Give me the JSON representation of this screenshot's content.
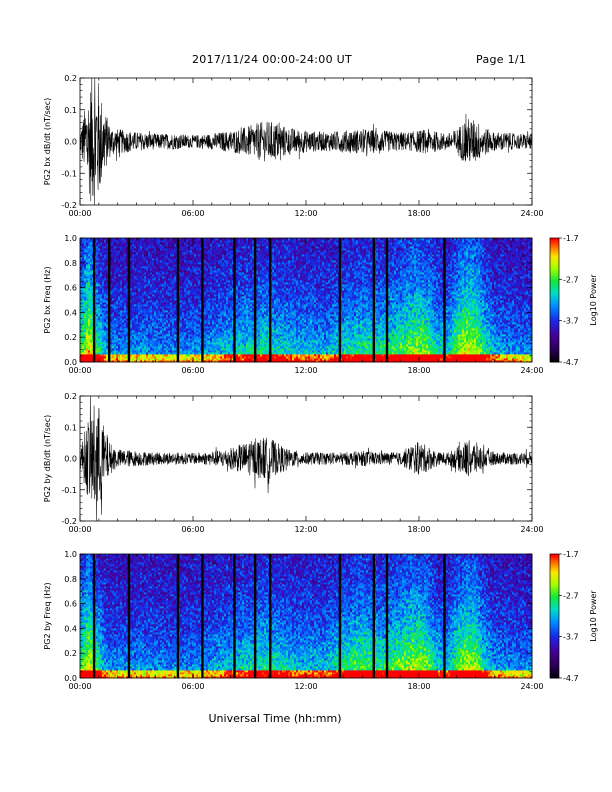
{
  "header": {
    "date_range": "2017/11/24  00:00-24:00 UT",
    "page": "Page 1/1"
  },
  "xlabel": "Universal Time (hh:mm)",
  "x_ticks": [
    "00:00",
    "06:00",
    "12:00",
    "18:00",
    "24:00"
  ],
  "chart_data": [
    {
      "type": "line",
      "panel": "bx-waveform",
      "ylabel": "PG2 bx dB/dt (nT/sec)",
      "ylim": [
        -0.2,
        0.2
      ],
      "y_ticks": [
        "-0.2",
        "-0.1",
        "0.0",
        "0.1",
        "0.2"
      ],
      "xlim_hours": [
        0,
        24
      ],
      "envelope": {
        "hours": [
          0,
          0.3,
          0.6,
          0.9,
          1.2,
          1.6,
          2,
          3,
          4,
          5,
          6,
          7,
          7.5,
          8,
          8.5,
          9,
          9.5,
          10,
          10.5,
          11,
          11.5,
          12,
          13,
          14,
          15,
          16,
          17,
          17.5,
          18,
          18.5,
          19,
          19.5,
          20,
          20.5,
          21,
          21.5,
          22,
          22.5,
          23,
          24
        ],
        "amplitude": [
          0.03,
          0.12,
          0.2,
          0.22,
          0.12,
          0.05,
          0.04,
          0.03,
          0.025,
          0.025,
          0.02,
          0.025,
          0.03,
          0.035,
          0.04,
          0.05,
          0.06,
          0.065,
          0.06,
          0.045,
          0.04,
          0.035,
          0.03,
          0.035,
          0.04,
          0.035,
          0.03,
          0.03,
          0.035,
          0.04,
          0.03,
          0.025,
          0.04,
          0.075,
          0.07,
          0.045,
          0.03,
          0.03,
          0.025,
          0.025
        ]
      }
    },
    {
      "type": "heatmap",
      "panel": "bx-spectrogram",
      "ylabel": "PG2 bx Freq (Hz)",
      "ylim": [
        0,
        1.0
      ],
      "y_ticks": [
        "0.0",
        "0.2",
        "0.4",
        "0.6",
        "0.8",
        "1.0"
      ],
      "xlim_hours": [
        0,
        24
      ],
      "colorbar": {
        "label": "Log10 Power",
        "ticks": [
          "-1.7",
          "-2.7",
          "-3.7",
          "-4.7"
        ],
        "range": [
          -4.7,
          -1.7
        ]
      },
      "gap_lines_hours": [
        0.75,
        1.55,
        2.6,
        5.2,
        6.5,
        8.2,
        9.3,
        10.1,
        13.8,
        15.6,
        16.3,
        19.35
      ],
      "activity": {
        "hours": [
          0,
          0.5,
          1,
          1.5,
          2,
          3,
          4,
          5,
          6,
          7,
          8,
          9,
          10,
          11,
          12,
          13,
          14,
          15,
          16,
          17,
          17.5,
          18,
          18.5,
          19,
          19.5,
          20,
          20.5,
          21,
          21.5,
          22,
          23,
          24
        ],
        "level": [
          0.55,
          0.8,
          0.5,
          0.3,
          0.3,
          0.3,
          0.3,
          0.28,
          0.3,
          0.33,
          0.4,
          0.45,
          0.48,
          0.42,
          0.38,
          0.35,
          0.45,
          0.5,
          0.48,
          0.55,
          0.62,
          0.66,
          0.6,
          0.45,
          0.4,
          0.6,
          0.75,
          0.7,
          0.5,
          0.35,
          0.3,
          0.28
        ]
      }
    },
    {
      "type": "line",
      "panel": "by-waveform",
      "ylabel": "PG2 by dB/dt (nT/sec)",
      "ylim": [
        -0.2,
        0.2
      ],
      "y_ticks": [
        "-0.2",
        "-0.1",
        "0.0",
        "0.1",
        "0.2"
      ],
      "xlim_hours": [
        0,
        24
      ],
      "envelope": {
        "hours": [
          0,
          0.3,
          0.6,
          0.9,
          1.2,
          1.6,
          2,
          3,
          4,
          5,
          6,
          7,
          7.5,
          8,
          8.5,
          9,
          9.5,
          10,
          10.5,
          11,
          11.5,
          12,
          13,
          14,
          15,
          16,
          17,
          17.5,
          18,
          18.5,
          19,
          19.5,
          20,
          20.5,
          21,
          21.5,
          22,
          22.5,
          23,
          24
        ],
        "amplitude": [
          0.03,
          0.1,
          0.16,
          0.2,
          0.12,
          0.05,
          0.03,
          0.025,
          0.02,
          0.02,
          0.018,
          0.022,
          0.028,
          0.035,
          0.045,
          0.055,
          0.065,
          0.07,
          0.05,
          0.03,
          0.025,
          0.02,
          0.02,
          0.02,
          0.025,
          0.02,
          0.02,
          0.04,
          0.055,
          0.04,
          0.02,
          0.02,
          0.035,
          0.06,
          0.055,
          0.03,
          0.02,
          0.02,
          0.02,
          0.02
        ]
      }
    },
    {
      "type": "heatmap",
      "panel": "by-spectrogram",
      "ylabel": "PG2 by Freq (Hz)",
      "ylim": [
        0,
        1.0
      ],
      "y_ticks": [
        "0.0",
        "0.2",
        "0.4",
        "0.6",
        "0.8",
        "1.0"
      ],
      "xlim_hours": [
        0,
        24
      ],
      "colorbar": {
        "label": "Log10 Power",
        "ticks": [
          "-1.7",
          "-2.7",
          "-3.7",
          "-4.7"
        ],
        "range": [
          -4.7,
          -1.7
        ]
      },
      "gap_lines_hours": [
        0.75,
        2.6,
        5.2,
        6.5,
        8.2,
        9.3,
        10.1,
        13.8,
        15.6,
        16.3,
        19.35
      ],
      "activity": {
        "hours": [
          0,
          0.5,
          1,
          1.5,
          2,
          3,
          4,
          5,
          6,
          7,
          8,
          9,
          10,
          11,
          12,
          13,
          14,
          15,
          16,
          17,
          17.5,
          18,
          18.5,
          19,
          19.5,
          20,
          20.5,
          21,
          21.5,
          22,
          23,
          24
        ],
        "level": [
          0.55,
          0.75,
          0.5,
          0.3,
          0.3,
          0.3,
          0.3,
          0.28,
          0.3,
          0.33,
          0.4,
          0.45,
          0.5,
          0.42,
          0.38,
          0.38,
          0.5,
          0.58,
          0.5,
          0.6,
          0.66,
          0.68,
          0.6,
          0.42,
          0.4,
          0.58,
          0.7,
          0.65,
          0.45,
          0.33,
          0.3,
          0.28
        ]
      }
    }
  ]
}
